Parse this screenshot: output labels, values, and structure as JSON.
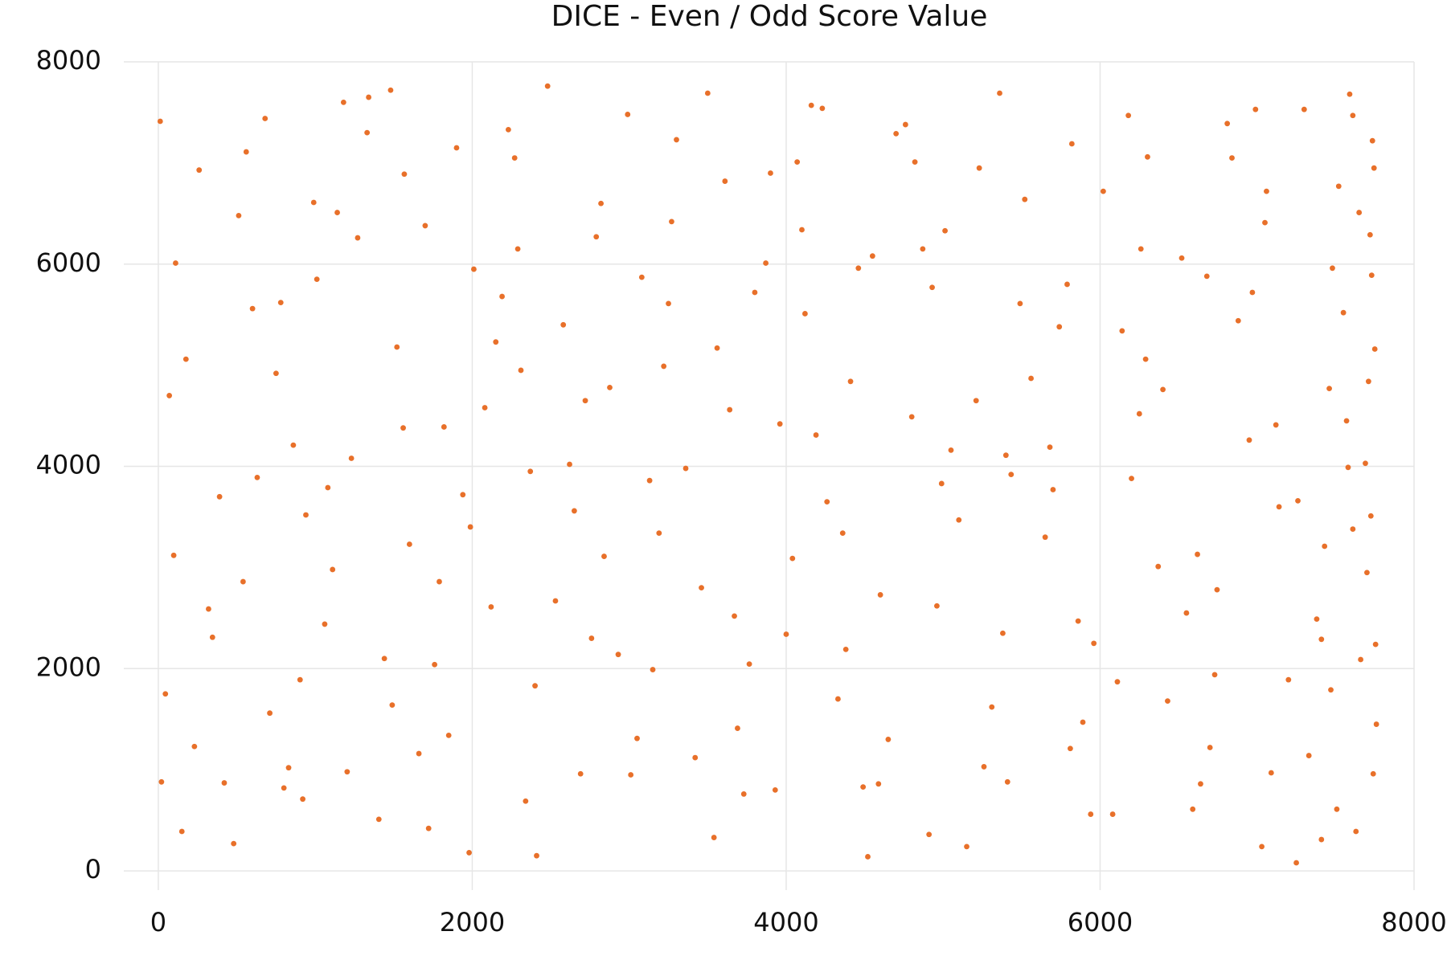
{
  "chart_data": {
    "type": "scatter",
    "title": "DICE - Even / Odd Score Value",
    "color": "#e8702a",
    "grid": true,
    "xlim": [
      -220,
      8000
    ],
    "ylim": [
      -190,
      8000
    ],
    "xticks": [
      0,
      2000,
      4000,
      6000,
      8000
    ],
    "yticks": [
      0,
      2000,
      4000,
      6000,
      8000
    ],
    "x": [
      12,
      345,
      780,
      1203,
      1567,
      1988,
      2410,
      2876,
      3301,
      3765,
      4120,
      4588,
      5012,
      5433,
      5890,
      6302,
      6745,
      7120,
      7508,
      7730,
      98,
      512,
      903,
      1340,
      1722,
      2150,
      2530,
      2990,
      3420,
      3870,
      4260,
      4700,
      5150,
      5560,
      6020,
      6430,
      6880,
      7250,
      7610,
      7745,
      176,
      420,
      860,
      1110,
      1480,
      1850,
      2290,
      2650,
      3080,
      3540,
      3960,
      4380,
      4820,
      5260,
      5700,
      6140,
      6590,
      6990,
      7380,
      7690,
      45,
      630,
      990,
      1405,
      1790,
      2230,
      2720,
      3150,
      3610,
      4040,
      4490,
      4930,
      5380,
      5820,
      6250,
      6700,
      7050,
      7430,
      7590,
      7740,
      260,
      710,
      1060,
      1520,
      1940,
      2340,
      2790,
      3220,
      3690,
      4160,
      4600,
      5050,
      5490,
      5940,
      6370,
      6810,
      7200,
      7550,
      7660,
      7710,
      150,
      560,
      940,
      1270,
      1660,
      2080,
      2480,
      2930,
      3360,
      3800,
      4230,
      4650,
      5100,
      5520,
      5960,
      6400,
      6840,
      7260,
      7480,
      7760,
      320,
      750,
      1180,
      1600,
      2010,
      2400,
      2840,
      3270,
      3730,
      4190,
      4550,
      4990,
      5410,
      5860,
      6290,
      6730,
      7140,
      7520,
      7630,
      7700,
      70,
      480,
      830,
      1230,
      1700,
      2120,
      2580,
      3010,
      3460,
      3900,
      4330,
      4760,
      5210,
      5650,
      6080,
      6520,
      6950,
      7330,
      7570,
      7735,
      230,
      600,
      1010,
      1440,
      1820,
      2270,
      2690,
      3130,
      3560,
      4000,
      4410,
      4870,
      5310,
      5740,
      6180,
      6620,
      7030,
      7410,
      7650,
      7725,
      110,
      540,
      920,
      1330,
      1760,
      2190,
      2620,
      3050,
      3500,
      3930,
      4360,
      4800,
      5230,
      5680,
      6110,
      6550,
      6970,
      7300,
      7470,
      7750,
      390,
      800,
      1140,
      1560,
      1980,
      2370,
      2820,
      3250,
      3670,
      4100,
      4520,
      4960,
      5400,
      5810,
      6260,
      6680,
      7090,
      7460,
      7610,
      7755,
      20,
      680,
      1080,
      1490,
      1900,
      2310,
      2760,
      3190,
      3640,
      4070,
      4460,
      4910,
      5360,
      5790,
      6200,
      6640,
      7060,
      7410,
      7580,
      7720
    ],
    "values": [
      7412,
      2310,
      5620,
      980,
      6890,
      3401,
      150,
      4780,
      7230,
      2045,
      5510,
      860,
      6330,
      3920,
      1470,
      7060,
      2780,
      4410,
      610,
      5890,
      3120,
      6480,
      1890,
      7650,
      420,
      5230,
      2670,
      7480,
      1120,
      6010,
      3650,
      7290,
      240,
      4870,
      6720,
      1680,
      5440,
      80,
      3380,
      6950,
      5060,
      870,
      4210,
      2980,
      7720,
      1340,
      6150,
      3560,
      5870,
      330,
      4420,
      2190,
      7010,
      1030,
      3770,
      5340,
      610,
      7530,
      2490,
      4030,
      1750,
      3890,
      6610,
      510,
      2860,
      7330,
      4650,
      1990,
      6820,
      3090,
      830,
      5770,
      2350,
      7190,
      4520,
      1220,
      6410,
      3210,
      7680,
      960,
      6930,
      1560,
      2440,
      5180,
      3720,
      690,
      6270,
      4990,
      1410,
      7570,
      2730,
      4160,
      5610,
      560,
      3010,
      7390,
      1890,
      5520,
      2090,
      4840,
      390,
      7110,
      3520,
      6260,
      1160,
      4580,
      7760,
      2140,
      3980,
      5720,
      7540,
      1300,
      3470,
      6640,
      2250,
      4760,
      7050,
      3660,
      5960,
      1450,
      2590,
      4920,
      7600,
      3230,
      5950,
      1830,
      3110,
      6420,
      760,
      4310,
      6080,
      3830,
      880,
      2470,
      5060,
      1940,
      3600,
      6770,
      390,
      2950,
      4700,
      270,
      1020,
      4080,
      6380,
      2610,
      5400,
      950,
      2800,
      6900,
      1700,
      7380,
      4650,
      3300,
      560,
      6060,
      4260,
      1140,
      4450,
      7220,
      1230,
      5560,
      5850,
      2100,
      4390,
      7050,
      960,
      3860,
      5170,
      2340,
      4840,
      6150,
      1620,
      5380,
      7470,
      3130,
      240,
      2290,
      6510,
      3510,
      6010,
      2860,
      710,
      7300,
      2040,
      5680,
      4020,
      1310,
      7690,
      800,
      3340,
      4490,
      6950,
      4190,
      1870,
      2550,
      5720,
      7530,
      1790,
      5160,
      3700,
      820,
      6510,
      4380,
      180,
      3950,
      6600,
      5610,
      2520,
      6340,
      140,
      2620,
      4110,
      1210,
      6150,
      5880,
      970,
      4770,
      7470,
      2240,
      880,
      7440,
      3790,
      1640,
      7150,
      4950,
      2300,
      3340,
      4560,
      7010,
      5960,
      360,
      7690,
      5800,
      3880,
      860,
      6720,
      310,
      3990,
      6290
    ]
  }
}
